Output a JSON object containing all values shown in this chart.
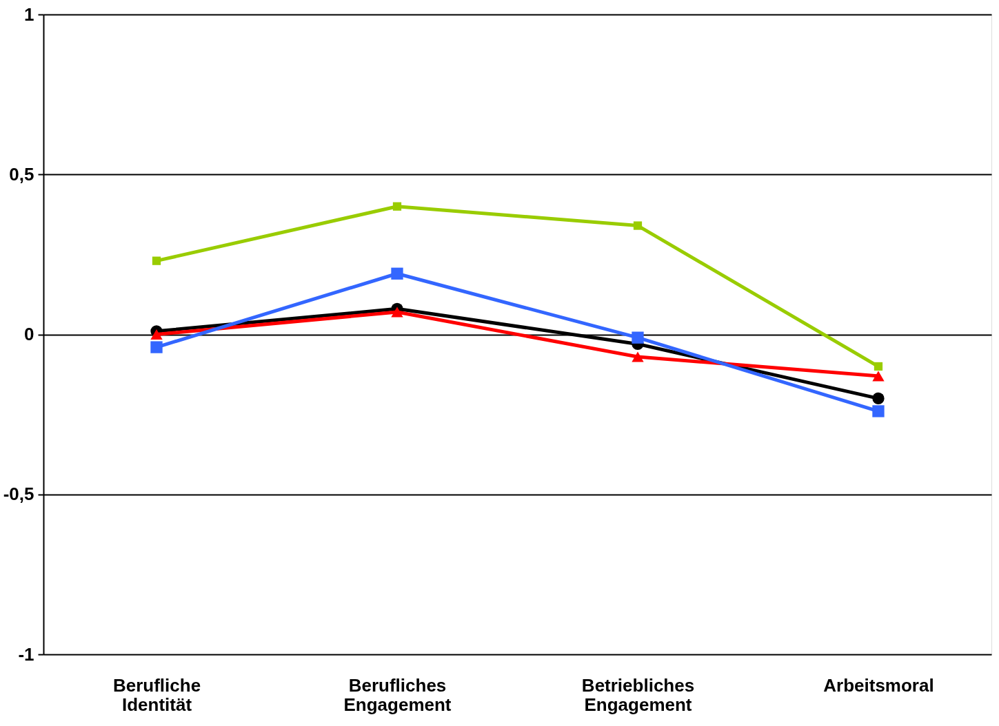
{
  "chart_data": {
    "type": "line",
    "categories": [
      "Berufliche Identität",
      "Berufliches Engagement",
      "Betriebliches Engagement",
      "Arbeitsmoral"
    ],
    "series": [
      {
        "color": "#99cc00",
        "marker": "square",
        "values": [
          0.23,
          0.4,
          0.34,
          -0.1
        ]
      },
      {
        "color": "#000000",
        "marker": "circle",
        "values": [
          0.01,
          0.08,
          -0.03,
          -0.2
        ]
      },
      {
        "color": "#ff0000",
        "marker": "triangle",
        "values": [
          0.0,
          0.07,
          -0.07,
          -0.13
        ]
      },
      {
        "color": "#3366ff",
        "marker": "square",
        "values": [
          -0.04,
          0.19,
          -0.01,
          -0.24
        ]
      }
    ],
    "ylim": [
      -1,
      1
    ],
    "yticks": [
      {
        "value": -1,
        "label": "-1"
      },
      {
        "value": -0.5,
        "label": "-0,5"
      },
      {
        "value": 0,
        "label": "0"
      },
      {
        "value": 0.5,
        "label": "0,5"
      },
      {
        "value": 1,
        "label": "1"
      }
    ],
    "grid": "y",
    "line_style": "solid"
  }
}
